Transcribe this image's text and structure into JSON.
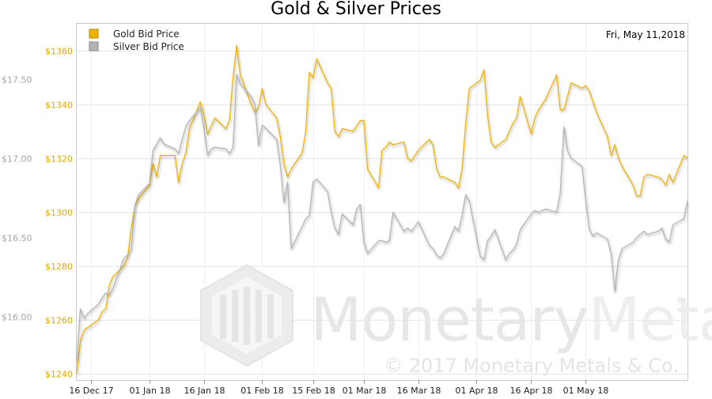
{
  "chart_data": {
    "type": "line",
    "title": "Gold & Silver Prices",
    "date_label": "Fri, May 11,2018",
    "legend": {
      "position": "top-left"
    },
    "grid": true,
    "watermark": {
      "brand": "MonetaryMetals",
      "brand_parts": [
        "Monetary",
        "Metals"
      ],
      "registered": "®",
      "copyright": "© 2017 Monetary Metals & Co."
    },
    "x_ticks": [
      "16 Dec 17",
      "01 Jan 18",
      "16 Jan 18",
      "01 Feb 18",
      "15 Feb 18",
      "01 Mar 18",
      "16 Mar 18",
      "01 Apr 18",
      "16 Apr 18",
      "01 May 18"
    ],
    "gold_axis": {
      "ylim": [
        1237.5,
        1370
      ],
      "ticks": [
        "$1240",
        "$1260",
        "$1280",
        "$1300",
        "$1320",
        "$1340",
        "$1360"
      ],
      "tick_values": [
        1240,
        1260,
        1280,
        1300,
        1320,
        1340,
        1360
      ]
    },
    "silver_axis": {
      "ylim": [
        15.6,
        17.85
      ],
      "ticks": [
        "$16.00",
        "$16.50",
        "$17.00",
        "$17.50"
      ],
      "tick_values": [
        16.0,
        16.5,
        17.0,
        17.5
      ]
    },
    "series": [
      {
        "name": "Gold Bid Price",
        "axis": "gold",
        "color": "#f0b400",
        "points": [
          [
            "2017-12-12",
            1240
          ],
          [
            "2017-12-13",
            1252
          ],
          [
            "2017-12-14",
            1256
          ],
          [
            "2017-12-15",
            1257
          ],
          [
            "2017-12-18",
            1260
          ],
          [
            "2017-12-19",
            1263
          ],
          [
            "2017-12-20",
            1264
          ],
          [
            "2017-12-21",
            1273
          ],
          [
            "2017-12-22",
            1276
          ],
          [
            "2017-12-25",
            1280
          ],
          [
            "2017-12-26",
            1283
          ],
          [
            "2017-12-27",
            1294
          ],
          [
            "2017-12-28",
            1302
          ],
          [
            "2017-12-29",
            1305
          ],
          [
            "2018-01-01",
            1310
          ],
          [
            "2018-01-02",
            1318
          ],
          [
            "2018-01-03",
            1313
          ],
          [
            "2018-01-04",
            1321
          ],
          [
            "2018-01-05",
            1321
          ],
          [
            "2018-01-08",
            1321
          ],
          [
            "2018-01-09",
            1311
          ],
          [
            "2018-01-10",
            1318
          ],
          [
            "2018-01-11",
            1322
          ],
          [
            "2018-01-12",
            1331
          ],
          [
            "2018-01-15",
            1341
          ],
          [
            "2018-01-16",
            1336
          ],
          [
            "2018-01-17",
            1329
          ],
          [
            "2018-01-18",
            1332
          ],
          [
            "2018-01-19",
            1335
          ],
          [
            "2018-01-22",
            1331
          ],
          [
            "2018-01-23",
            1334
          ],
          [
            "2018-01-24",
            1350
          ],
          [
            "2018-01-25",
            1362
          ],
          [
            "2018-01-26",
            1351
          ],
          [
            "2018-01-29",
            1340
          ],
          [
            "2018-01-30",
            1337
          ],
          [
            "2018-01-31",
            1339
          ],
          [
            "2018-02-01",
            1346
          ],
          [
            "2018-02-02",
            1340
          ],
          [
            "2018-02-05",
            1335
          ],
          [
            "2018-02-06",
            1328
          ],
          [
            "2018-02-07",
            1318
          ],
          [
            "2018-02-08",
            1313
          ],
          [
            "2018-02-09",
            1316
          ],
          [
            "2018-02-12",
            1322
          ],
          [
            "2018-02-13",
            1330
          ],
          [
            "2018-02-14",
            1352
          ],
          [
            "2018-02-15",
            1350
          ],
          [
            "2018-02-16",
            1357
          ],
          [
            "2018-02-19",
            1348
          ],
          [
            "2018-02-20",
            1346
          ],
          [
            "2018-02-21",
            1330
          ],
          [
            "2018-02-22",
            1328
          ],
          [
            "2018-02-23",
            1331
          ],
          [
            "2018-02-26",
            1330
          ],
          [
            "2018-02-27",
            1332
          ],
          [
            "2018-02-28",
            1334
          ],
          [
            "2018-03-01",
            1334
          ],
          [
            "2018-03-02",
            1316
          ],
          [
            "2018-03-05",
            1309
          ],
          [
            "2018-03-06",
            1323
          ],
          [
            "2018-03-07",
            1324
          ],
          [
            "2018-03-08",
            1326
          ],
          [
            "2018-03-09",
            1325
          ],
          [
            "2018-03-12",
            1326
          ],
          [
            "2018-03-13",
            1320
          ],
          [
            "2018-03-14",
            1319
          ],
          [
            "2018-03-15",
            1321
          ],
          [
            "2018-03-16",
            1323
          ],
          [
            "2018-03-19",
            1327
          ],
          [
            "2018-03-20",
            1325
          ],
          [
            "2018-03-21",
            1316
          ],
          [
            "2018-03-22",
            1313
          ],
          [
            "2018-03-23",
            1313
          ],
          [
            "2018-03-26",
            1311
          ],
          [
            "2018-03-27",
            1309
          ],
          [
            "2018-03-28",
            1316
          ],
          [
            "2018-03-29",
            1333
          ],
          [
            "2018-03-30",
            1346
          ],
          [
            "2018-04-02",
            1349
          ],
          [
            "2018-04-03",
            1353
          ],
          [
            "2018-04-04",
            1336
          ],
          [
            "2018-04-05",
            1326
          ],
          [
            "2018-04-06",
            1324
          ],
          [
            "2018-04-09",
            1327
          ],
          [
            "2018-04-10",
            1330
          ],
          [
            "2018-04-11",
            1333
          ],
          [
            "2018-04-12",
            1335
          ],
          [
            "2018-04-13",
            1343
          ],
          [
            "2018-04-16",
            1329
          ],
          [
            "2018-04-17",
            1335
          ],
          [
            "2018-04-18",
            1338
          ],
          [
            "2018-04-19",
            1340
          ],
          [
            "2018-04-20",
            1342
          ],
          [
            "2018-04-23",
            1351
          ],
          [
            "2018-04-24",
            1338
          ],
          [
            "2018-04-25",
            1338
          ],
          [
            "2018-04-26",
            1343
          ],
          [
            "2018-04-27",
            1348
          ],
          [
            "2018-04-30",
            1346
          ],
          [
            "2018-05-01",
            1347
          ],
          [
            "2018-05-02",
            1345
          ],
          [
            "2018-05-03",
            1341
          ],
          [
            "2018-05-04",
            1337
          ],
          [
            "2018-05-07",
            1328
          ],
          [
            "2018-05-08",
            1321
          ],
          [
            "2018-05-09",
            1325
          ],
          [
            "2018-05-10",
            1320
          ],
          [
            "2018-05-11",
            1317
          ],
          [
            "2018-05-14",
            1310
          ],
          [
            "2018-05-15",
            1306
          ],
          [
            "2018-05-16",
            1306
          ],
          [
            "2018-05-17",
            1313
          ],
          [
            "2018-05-18",
            1314
          ],
          [
            "2018-05-21",
            1313
          ],
          [
            "2018-05-22",
            1312
          ],
          [
            "2018-05-23",
            1310
          ],
          [
            "2018-05-24",
            1314
          ],
          [
            "2018-05-25",
            1311
          ],
          [
            "2018-05-28",
            1321
          ],
          [
            "2018-05-29",
            1320
          ]
        ]
      },
      {
        "name": "Silver Bid Price",
        "axis": "silver",
        "color": "#b4b4b4",
        "points": [
          [
            "2017-12-12",
            15.72
          ],
          [
            "2017-12-13",
            16.05
          ],
          [
            "2017-12-14",
            15.99
          ],
          [
            "2017-12-15",
            16.02
          ],
          [
            "2017-12-18",
            16.08
          ],
          [
            "2017-12-19",
            16.12
          ],
          [
            "2017-12-20",
            16.15
          ],
          [
            "2017-12-21",
            16.14
          ],
          [
            "2017-12-22",
            16.18
          ],
          [
            "2017-12-25",
            16.37
          ],
          [
            "2017-12-26",
            16.39
          ],
          [
            "2017-12-27",
            16.42
          ],
          [
            "2017-12-28",
            16.7
          ],
          [
            "2017-12-29",
            16.77
          ],
          [
            "2018-01-01",
            16.84
          ],
          [
            "2018-01-02",
            17.05
          ],
          [
            "2018-01-03",
            17.09
          ],
          [
            "2018-01-04",
            17.13
          ],
          [
            "2018-01-05",
            17.09
          ],
          [
            "2018-01-08",
            17.06
          ],
          [
            "2018-01-09",
            17.03
          ],
          [
            "2018-01-10",
            17.12
          ],
          [
            "2018-01-11",
            17.2
          ],
          [
            "2018-01-12",
            17.24
          ],
          [
            "2018-01-15",
            17.32
          ],
          [
            "2018-01-16",
            17.19
          ],
          [
            "2018-01-17",
            17.02
          ],
          [
            "2018-01-18",
            17.06
          ],
          [
            "2018-01-19",
            17.07
          ],
          [
            "2018-01-22",
            17.06
          ],
          [
            "2018-01-23",
            17.03
          ],
          [
            "2018-01-24",
            17.07
          ],
          [
            "2018-01-25",
            17.53
          ],
          [
            "2018-01-26",
            17.47
          ],
          [
            "2018-01-29",
            17.39
          ],
          [
            "2018-01-30",
            17.34
          ],
          [
            "2018-01-31",
            17.08
          ],
          [
            "2018-02-01",
            17.21
          ],
          [
            "2018-02-02",
            17.19
          ],
          [
            "2018-02-05",
            17.12
          ],
          [
            "2018-02-06",
            16.96
          ],
          [
            "2018-02-07",
            16.72
          ],
          [
            "2018-02-08",
            16.85
          ],
          [
            "2018-02-09",
            16.43
          ],
          [
            "2018-02-12",
            16.57
          ],
          [
            "2018-02-13",
            16.62
          ],
          [
            "2018-02-14",
            16.64
          ],
          [
            "2018-02-15",
            16.85
          ],
          [
            "2018-02-16",
            16.87
          ],
          [
            "2018-02-19",
            16.79
          ],
          [
            "2018-02-20",
            16.66
          ],
          [
            "2018-02-21",
            16.56
          ],
          [
            "2018-02-22",
            16.52
          ],
          [
            "2018-02-23",
            16.65
          ],
          [
            "2018-02-26",
            16.58
          ],
          [
            "2018-02-27",
            16.68
          ],
          [
            "2018-02-28",
            16.71
          ],
          [
            "2018-03-01",
            16.47
          ],
          [
            "2018-03-02",
            16.4
          ],
          [
            "2018-03-05",
            16.48
          ],
          [
            "2018-03-06",
            16.48
          ],
          [
            "2018-03-07",
            16.47
          ],
          [
            "2018-03-08",
            16.48
          ],
          [
            "2018-03-09",
            16.66
          ],
          [
            "2018-03-12",
            16.54
          ],
          [
            "2018-03-13",
            16.56
          ],
          [
            "2018-03-14",
            16.54
          ],
          [
            "2018-03-15",
            16.57
          ],
          [
            "2018-03-16",
            16.6
          ],
          [
            "2018-03-19",
            16.45
          ],
          [
            "2018-03-20",
            16.43
          ],
          [
            "2018-03-21",
            16.39
          ],
          [
            "2018-03-22",
            16.37
          ],
          [
            "2018-03-23",
            16.4
          ],
          [
            "2018-03-26",
            16.57
          ],
          [
            "2018-03-27",
            16.54
          ],
          [
            "2018-03-28",
            16.64
          ],
          [
            "2018-03-29",
            16.77
          ],
          [
            "2018-03-30",
            16.73
          ],
          [
            "2018-04-02",
            16.38
          ],
          [
            "2018-04-03",
            16.36
          ],
          [
            "2018-04-04",
            16.48
          ],
          [
            "2018-04-05",
            16.51
          ],
          [
            "2018-04-06",
            16.55
          ],
          [
            "2018-04-09",
            16.36
          ],
          [
            "2018-04-10",
            16.4
          ],
          [
            "2018-04-11",
            16.42
          ],
          [
            "2018-04-12",
            16.46
          ],
          [
            "2018-04-13",
            16.55
          ],
          [
            "2018-04-16",
            16.65
          ],
          [
            "2018-04-17",
            16.67
          ],
          [
            "2018-04-18",
            16.66
          ],
          [
            "2018-04-19",
            16.67
          ],
          [
            "2018-04-20",
            16.68
          ],
          [
            "2018-04-23",
            16.66
          ],
          [
            "2018-04-24",
            16.78
          ],
          [
            "2018-04-25",
            17.2
          ],
          [
            "2018-04-26",
            17.05
          ],
          [
            "2018-04-27",
            17.0
          ],
          [
            "2018-04-30",
            16.95
          ],
          [
            "2018-05-01",
            16.74
          ],
          [
            "2018-05-02",
            16.55
          ],
          [
            "2018-05-03",
            16.51
          ],
          [
            "2018-05-04",
            16.53
          ],
          [
            "2018-05-07",
            16.49
          ],
          [
            "2018-05-08",
            16.4
          ],
          [
            "2018-05-09",
            16.16
          ],
          [
            "2018-05-10",
            16.36
          ],
          [
            "2018-05-11",
            16.43
          ],
          [
            "2018-05-14",
            16.47
          ],
          [
            "2018-05-15",
            16.5
          ],
          [
            "2018-05-16",
            16.52
          ],
          [
            "2018-05-17",
            16.54
          ],
          [
            "2018-05-18",
            16.52
          ],
          [
            "2018-05-21",
            16.54
          ],
          [
            "2018-05-22",
            16.56
          ],
          [
            "2018-05-23",
            16.49
          ],
          [
            "2018-05-24",
            16.47
          ],
          [
            "2018-05-25",
            16.58
          ],
          [
            "2018-05-28",
            16.62
          ],
          [
            "2018-05-29",
            16.73
          ]
        ]
      }
    ]
  }
}
